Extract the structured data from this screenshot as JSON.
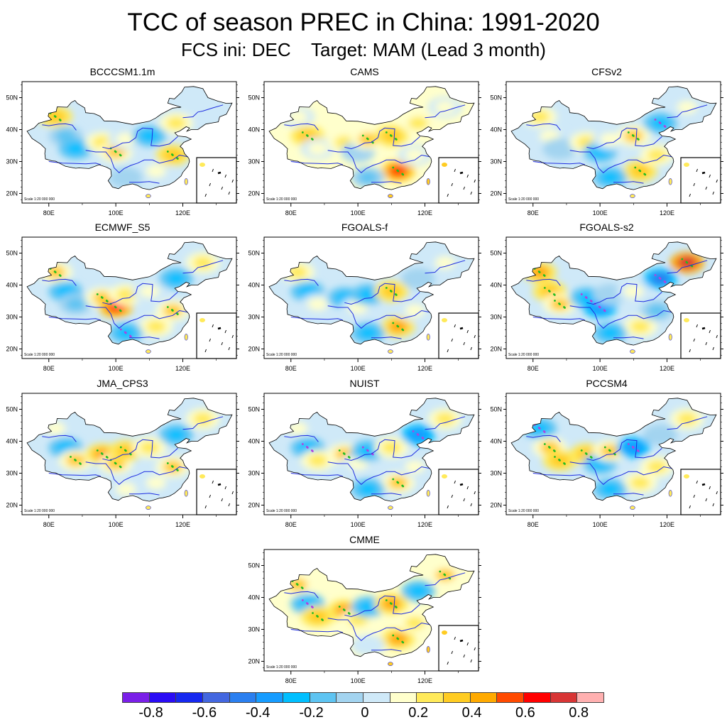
{
  "title": "TCC of season PREC in China: 1991-2020",
  "subtitle": "FCS ini: DEC    Target: MAM (Lead 3 month)",
  "axes": {
    "lat_ticks": [
      "20N",
      "30N",
      "40N",
      "50N"
    ],
    "lon_ticks": [
      "80E",
      "100E",
      "120E"
    ],
    "scale_text": "Scale 1:20 000 000"
  },
  "colors": {
    "river": "#1f2ee0",
    "border": "#000000",
    "province": "#555555",
    "significant_positive_marker": "#22bb22",
    "significant_negative_marker": "#b040e0"
  },
  "panels": [
    {
      "name": "BCCCSM1.1m",
      "bias": 0.05,
      "pattern": [
        0.35,
        -0.15,
        -0.25,
        0.2,
        0.3,
        0.1,
        -0.2,
        0.15,
        0.25,
        -0.1,
        0.35,
        0.05
      ]
    },
    {
      "name": "CAMS",
      "bias": 0.15,
      "pattern": [
        0.1,
        0.35,
        0.1,
        0.2,
        -0.1,
        0.3,
        0.35,
        0.6,
        0.2,
        -0.15,
        0.15,
        0.1
      ]
    },
    {
      "name": "CFSv2",
      "bias": 0.05,
      "pattern": [
        0.25,
        0.1,
        -0.1,
        0.2,
        -0.2,
        0.1,
        0.3,
        0.35,
        -0.3,
        -0.2,
        0.2,
        0.15
      ]
    },
    {
      "name": "ECMWF_S5",
      "bias": 0.05,
      "pattern": [
        0.3,
        -0.2,
        -0.15,
        0.3,
        0.6,
        0.2,
        0.1,
        0.2,
        -0.2,
        -0.3,
        0.3,
        0.2
      ]
    },
    {
      "name": "FGOALS-f",
      "bias": 0.05,
      "pattern": [
        0.2,
        -0.2,
        0.15,
        -0.25,
        0.1,
        -0.2,
        0.35,
        0.45,
        -0.1,
        -0.25,
        0.15,
        0.1
      ]
    },
    {
      "name": "FGOALS-s2",
      "bias": 0.0,
      "pattern": [
        0.4,
        0.35,
        0.3,
        -0.3,
        -0.35,
        -0.1,
        0.1,
        0.2,
        -0.45,
        -0.2,
        -0.15,
        0.7
      ]
    },
    {
      "name": "JMA_CPS3",
      "bias": 0.05,
      "pattern": [
        0.15,
        -0.25,
        0.3,
        0.45,
        0.3,
        0.35,
        0.25,
        0.1,
        -0.2,
        0.1,
        0.3,
        0.2
      ]
    },
    {
      "name": "NUIST",
      "bias": 0.0,
      "pattern": [
        0.1,
        -0.3,
        0.25,
        0.3,
        0.1,
        -0.3,
        0.2,
        0.3,
        -0.35,
        -0.2,
        0.15,
        0.2
      ]
    },
    {
      "name": "PCCSM4",
      "bias": 0.0,
      "pattern": [
        -0.3,
        0.3,
        0.35,
        0.35,
        -0.2,
        0.3,
        -0.35,
        0.2,
        -0.1,
        -0.25,
        0.2,
        0.25
      ]
    },
    {
      "name": "CMME",
      "bias": 0.15,
      "pattern": [
        0.3,
        -0.3,
        0.35,
        0.4,
        0.25,
        -0.2,
        0.45,
        0.4,
        -0.2,
        0.05,
        0.2,
        0.3
      ]
    }
  ],
  "colorbar": {
    "colors": [
      "#7a1fe8",
      "#2a0cf5",
      "#1628f0",
      "#4367e0",
      "#2a7ff0",
      "#169cff",
      "#00bfff",
      "#5ec4f2",
      "#a3d4f0",
      "#cfe9f8",
      "#ffffcc",
      "#ffea5a",
      "#ffcc22",
      "#ffaa00",
      "#ff7f00",
      "#ff4a00",
      "#ff0000",
      "#d60000",
      "#d83535",
      "#ffb0b0"
    ],
    "levels": [
      -0.9,
      -0.8,
      -0.7,
      -0.6,
      -0.5,
      -0.4,
      -0.3,
      -0.2,
      -0.1,
      0,
      0.1,
      0.2,
      0.3,
      0.4,
      0.5,
      0.6,
      0.7,
      0.8,
      0.9
    ],
    "labels": [
      "-0.8",
      "-0.6",
      "-0.4",
      "-0.2",
      "0",
      "0.2",
      "0.4",
      "0.6",
      "0.8"
    ]
  }
}
